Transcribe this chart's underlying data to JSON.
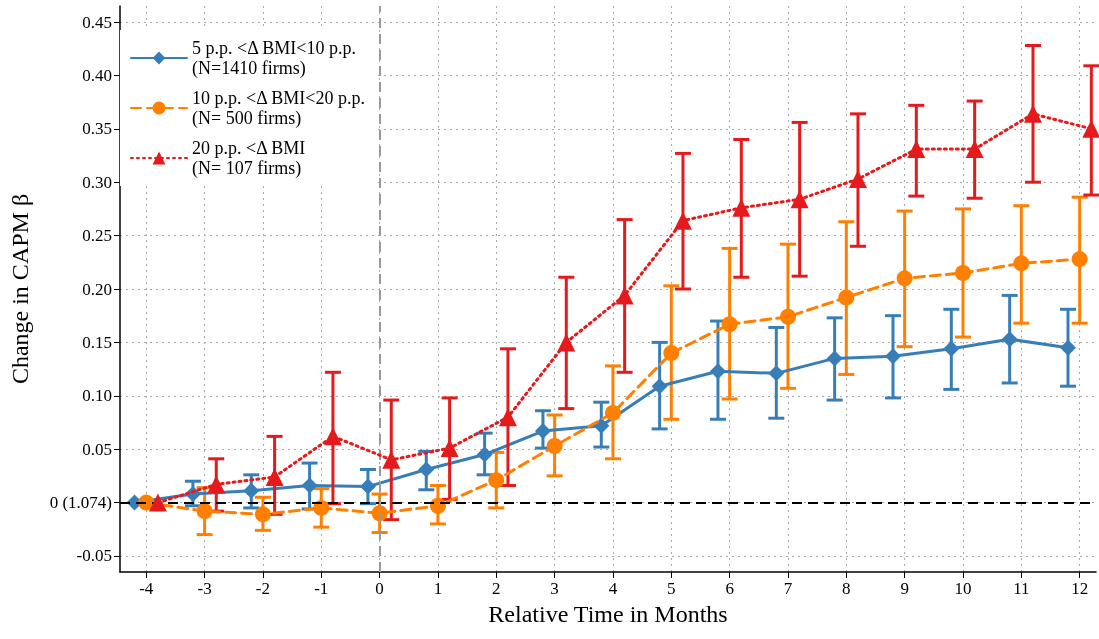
{
  "chart_data": {
    "type": "line",
    "xlabel": "Relative Time in Months",
    "ylabel": "Change in CAPM β",
    "xlim": [
      -4.45,
      12.28
    ],
    "xticks": [
      -4,
      -3,
      -2,
      -1,
      0,
      1,
      2,
      3,
      4,
      5,
      6,
      7,
      8,
      9,
      10,
      11,
      12
    ],
    "ylim": [
      -0.065,
      0.465
    ],
    "yticks": [
      {
        "value": -0.05,
        "label": "-0.05"
      },
      {
        "value": 0,
        "label": "0 (1.074)"
      },
      {
        "value": 0.05,
        "label": "0.05"
      },
      {
        "value": 0.1,
        "label": "0.10"
      },
      {
        "value": 0.15,
        "label": "0.15"
      },
      {
        "value": 0.2,
        "label": "0.20"
      },
      {
        "value": 0.25,
        "label": "0.25"
      },
      {
        "value": 0.3,
        "label": "0.30"
      },
      {
        "value": 0.35,
        "label": "0.35"
      },
      {
        "value": 0.4,
        "label": "0.40"
      },
      {
        "value": 0.45,
        "label": "0.45"
      }
    ],
    "grid": true,
    "legend": "top left",
    "ref_lines": [
      {
        "axis": "y",
        "value": 0,
        "color": "#000000",
        "line_style": "dashed"
      },
      {
        "axis": "x",
        "value": 0,
        "color": "#999999",
        "line_style": "dashed"
      }
    ],
    "series": [
      {
        "name": "5 p.p. <Δ BMI<10 p.p.\n(N=1410 firms)",
        "color": "#377eb8",
        "marker": "diamond",
        "line_style": "solid",
        "x": [
          -4.2,
          -3.2,
          -2.2,
          -1.2,
          -0.2,
          0.8,
          1.8,
          2.8,
          3.8,
          4.8,
          5.8,
          6.8,
          7.8,
          8.8,
          9.8,
          10.8,
          11.8
        ],
        "values": [
          0,
          0.008,
          0.011,
          0.016,
          0.015,
          0.031,
          0.045,
          0.067,
          0.072,
          0.109,
          0.123,
          0.121,
          0.135,
          0.137,
          0.144,
          0.153,
          0.145
        ],
        "errors": [
          null,
          [
            -0.003,
            0.02
          ],
          [
            -0.005,
            0.026
          ],
          [
            -0.006,
            0.037
          ],
          [
            -0.001,
            0.031
          ],
          [
            0.012,
            0.048
          ],
          [
            0.026,
            0.065
          ],
          [
            0.051,
            0.086
          ],
          [
            0.052,
            0.094
          ],
          [
            0.069,
            0.15
          ],
          [
            0.078,
            0.17
          ],
          [
            0.079,
            0.164
          ],
          [
            0.096,
            0.173
          ],
          [
            0.098,
            0.175
          ],
          [
            0.106,
            0.181
          ],
          [
            0.112,
            0.194
          ],
          [
            0.109,
            0.181
          ]
        ]
      },
      {
        "name": "10 p.p. <Δ BMI<20 p.p.\n(N= 500 firms)",
        "color": "#ff7f00",
        "marker": "circle",
        "line_style": "dashed",
        "x": [
          -4,
          -3,
          -2,
          -1,
          0,
          1,
          2,
          3,
          4,
          5,
          6,
          7,
          8,
          9,
          10,
          11,
          12
        ],
        "values": [
          0,
          -0.008,
          -0.011,
          -0.005,
          -0.01,
          -0.003,
          0.021,
          0.053,
          0.084,
          0.14,
          0.167,
          0.174,
          0.192,
          0.21,
          0.215,
          0.224,
          0.228
        ],
        "errors": [
          null,
          [
            -0.03,
            0.014
          ],
          [
            -0.026,
            0.005
          ],
          [
            -0.023,
            0.013
          ],
          [
            -0.028,
            0.008
          ],
          [
            -0.02,
            0.016
          ],
          [
            -0.005,
            0.047
          ],
          [
            0.025,
            0.082
          ],
          [
            0.041,
            0.128
          ],
          [
            0.078,
            0.203
          ],
          [
            0.097,
            0.238
          ],
          [
            0.107,
            0.242
          ],
          [
            0.12,
            0.263
          ],
          [
            0.146,
            0.273
          ],
          [
            0.155,
            0.275
          ],
          [
            0.168,
            0.278
          ],
          [
            0.168,
            0.286
          ]
        ]
      },
      {
        "name": "20 p.p. <Δ BMI\n(N= 107 firms)",
        "color": "#e41a1c",
        "marker": "triangle",
        "line_style": "dotted",
        "x": [
          -3.8,
          -2.8,
          -1.8,
          -0.8,
          0.2,
          1.2,
          2.2,
          3.2,
          4.2,
          5.2,
          6.2,
          7.2,
          8.2,
          9.2,
          10.2,
          11.2,
          12.2
        ],
        "values": [
          0,
          0.017,
          0.024,
          0.062,
          0.04,
          0.051,
          0.08,
          0.15,
          0.194,
          0.264,
          0.276,
          0.284,
          0.303,
          0.331,
          0.331,
          0.364,
          0.35
        ],
        "errors": [
          null,
          [
            -0.008,
            0.041
          ],
          [
            -0.011,
            0.062
          ],
          [
            -0.001,
            0.122
          ],
          [
            -0.016,
            0.096
          ],
          [
            0.003,
            0.098
          ],
          [
            0.016,
            0.144
          ],
          [
            0.088,
            0.211
          ],
          [
            0.122,
            0.265
          ],
          [
            0.2,
            0.327
          ],
          [
            0.211,
            0.34
          ],
          [
            0.212,
            0.356
          ],
          [
            0.24,
            0.364
          ],
          [
            0.287,
            0.372
          ],
          [
            0.285,
            0.376
          ],
          [
            0.3,
            0.428
          ],
          [
            0.288,
            0.409
          ]
        ]
      }
    ]
  }
}
